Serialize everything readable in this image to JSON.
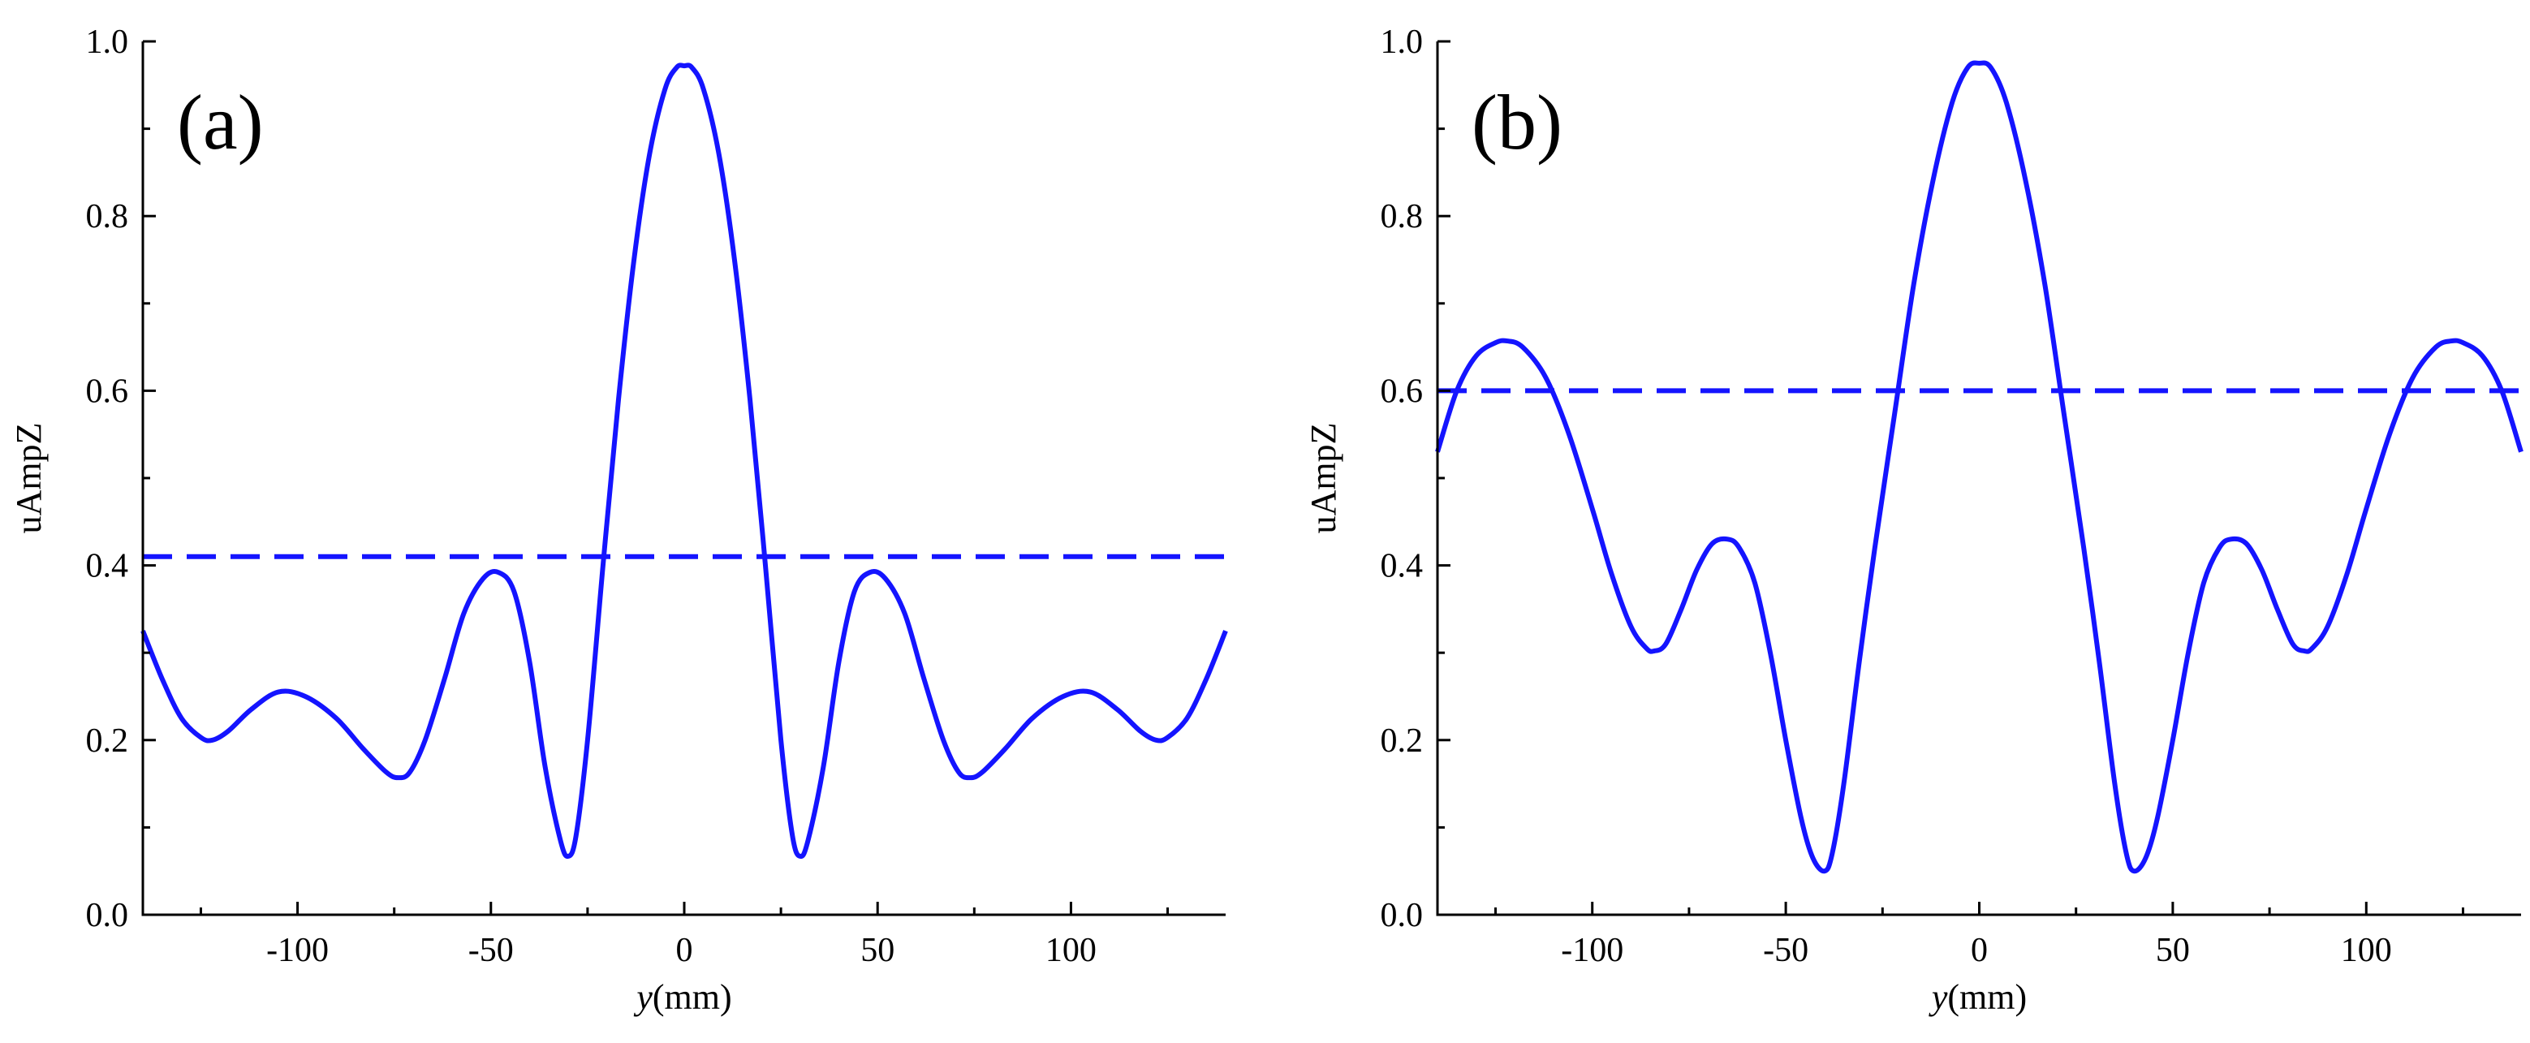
{
  "chart_data": [
    {
      "type": "line",
      "panel_label": "(a)",
      "xlabel_italic": "y",
      "xlabel_unit": "(mm)",
      "ylabel": "uAmpZ",
      "xlim": [
        -140,
        140
      ],
      "ylim": [
        0.0,
        1.0
      ],
      "xticks": [
        -100,
        -50,
        0,
        50,
        100
      ],
      "xtick_labels": [
        "-100",
        "-50",
        "0",
        "50",
        "100"
      ],
      "yticks": [
        0.0,
        0.2,
        0.4,
        0.6,
        0.8,
        1.0
      ],
      "ytick_labels": [
        "0.0",
        "0.2",
        "0.4",
        "0.6",
        "0.8",
        "1.0"
      ],
      "grid": false,
      "color": "#1414ff",
      "series": [
        {
          "style": "solid",
          "x": [
            -140,
            -135,
            -130,
            -125,
            -122,
            -118,
            -112,
            -105,
            -98,
            -90,
            -83,
            -77,
            -74,
            -71,
            -67,
            -62,
            -57,
            -52,
            -48,
            -44,
            -40,
            -36,
            -32,
            -30,
            -28,
            -25,
            -21,
            -17,
            -13,
            -9,
            -5,
            -2,
            0,
            2,
            5,
            9,
            13,
            17,
            21,
            25,
            28,
            30,
            32,
            36,
            40,
            44,
            48,
            52,
            57,
            62,
            67,
            71,
            74,
            77,
            83,
            90,
            98,
            105,
            112,
            118,
            122,
            125,
            130,
            135,
            140
          ],
          "y": [
            0.325,
            0.27,
            0.225,
            0.203,
            0.2,
            0.21,
            0.235,
            0.255,
            0.25,
            0.225,
            0.19,
            0.163,
            0.157,
            0.163,
            0.2,
            0.27,
            0.345,
            0.385,
            0.392,
            0.37,
            0.29,
            0.17,
            0.085,
            0.067,
            0.09,
            0.2,
            0.4,
            0.59,
            0.75,
            0.87,
            0.945,
            0.97,
            0.972,
            0.97,
            0.945,
            0.87,
            0.75,
            0.59,
            0.4,
            0.2,
            0.09,
            0.067,
            0.085,
            0.17,
            0.29,
            0.37,
            0.392,
            0.385,
            0.345,
            0.27,
            0.2,
            0.163,
            0.157,
            0.163,
            0.19,
            0.225,
            0.25,
            0.255,
            0.235,
            0.21,
            0.2,
            0.203,
            0.225,
            0.27,
            0.325
          ]
        },
        {
          "style": "dashed",
          "x": [
            -140,
            140
          ],
          "y": [
            0.41,
            0.41
          ]
        }
      ]
    },
    {
      "type": "line",
      "panel_label": "(b)",
      "xlabel_italic": "y",
      "xlabel_unit": "(mm)",
      "ylabel": "uAmpZ",
      "xlim": [
        -140,
        140
      ],
      "ylim": [
        0.0,
        1.0
      ],
      "xticks": [
        -100,
        -50,
        0,
        50,
        100
      ],
      "xtick_labels": [
        "-100",
        "-50",
        "0",
        "50",
        "100"
      ],
      "yticks": [
        0.0,
        0.2,
        0.4,
        0.6,
        0.8,
        1.0
      ],
      "ytick_labels": [
        "0.0",
        "0.2",
        "0.4",
        "0.6",
        "0.8",
        "1.0"
      ],
      "grid": false,
      "color": "#1414ff",
      "series": [
        {
          "style": "solid",
          "x": [
            -140,
            -135,
            -130,
            -125,
            -122,
            -118,
            -112,
            -106,
            -100,
            -95,
            -90,
            -86,
            -84,
            -81,
            -77,
            -73,
            -69,
            -65,
            -62,
            -58,
            -54,
            -50,
            -46,
            -43,
            -40,
            -38,
            -35,
            -31,
            -27,
            -22,
            -17,
            -12,
            -7,
            -3,
            0,
            3,
            7,
            12,
            17,
            22,
            27,
            31,
            35,
            38,
            40,
            43,
            46,
            50,
            54,
            58,
            62,
            65,
            69,
            73,
            77,
            81,
            84,
            86,
            90,
            95,
            100,
            106,
            112,
            118,
            122,
            125,
            130,
            135,
            140
          ],
          "y": [
            0.53,
            0.6,
            0.64,
            0.655,
            0.657,
            0.65,
            0.615,
            0.55,
            0.465,
            0.39,
            0.33,
            0.305,
            0.302,
            0.31,
            0.35,
            0.395,
            0.425,
            0.43,
            0.42,
            0.38,
            0.3,
            0.2,
            0.11,
            0.065,
            0.05,
            0.07,
            0.15,
            0.29,
            0.42,
            0.57,
            0.72,
            0.84,
            0.93,
            0.97,
            0.975,
            0.97,
            0.93,
            0.84,
            0.72,
            0.57,
            0.42,
            0.29,
            0.15,
            0.07,
            0.05,
            0.065,
            0.11,
            0.2,
            0.3,
            0.38,
            0.42,
            0.43,
            0.425,
            0.395,
            0.35,
            0.31,
            0.302,
            0.305,
            0.33,
            0.39,
            0.465,
            0.55,
            0.615,
            0.65,
            0.657,
            0.655,
            0.64,
            0.6,
            0.53
          ]
        },
        {
          "style": "dashed",
          "x": [
            -140,
            140
          ],
          "y": [
            0.6,
            0.6
          ]
        }
      ]
    }
  ]
}
